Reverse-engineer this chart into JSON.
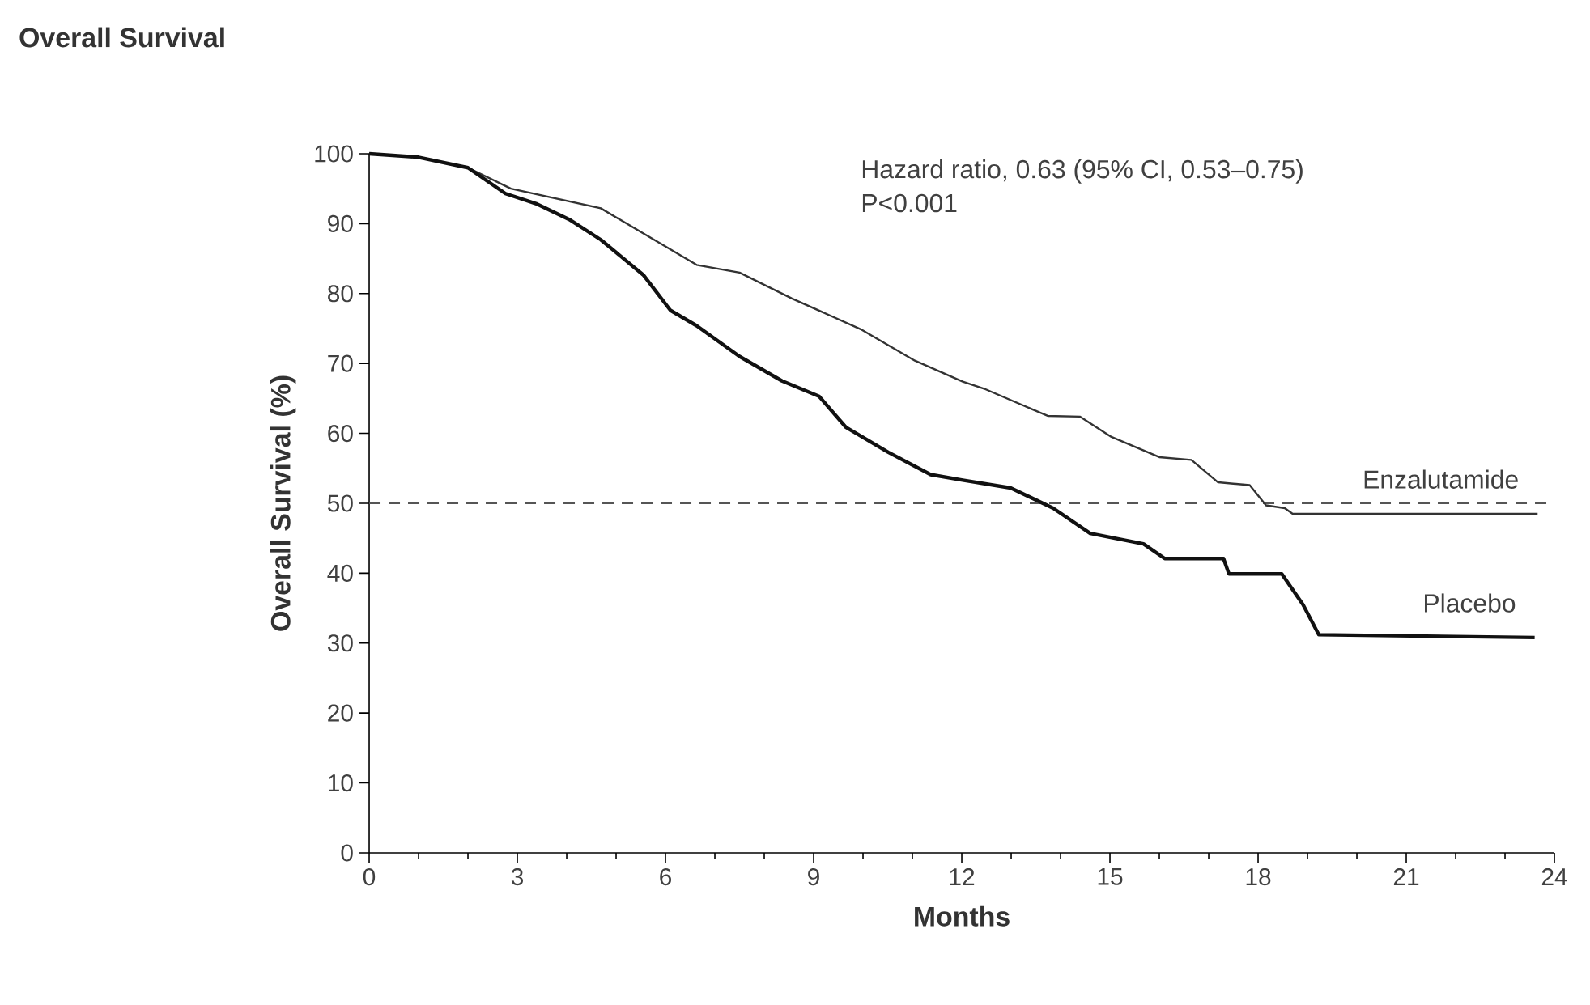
{
  "chart_data": {
    "type": "line",
    "title": "Overall Survival",
    "xlabel": "Months",
    "ylabel": "Overall Survival (%)",
    "annotations": [
      "Hazard ratio, 0.63 (95% CI, 0.53–0.75)",
      "P<0.001"
    ],
    "xlim": [
      0,
      24
    ],
    "ylim": [
      0,
      100
    ],
    "xticks": [
      0,
      3,
      6,
      9,
      12,
      15,
      18,
      21,
      24
    ],
    "yticks": [
      0,
      10,
      20,
      30,
      40,
      50,
      60,
      70,
      80,
      90,
      100
    ],
    "marker": "none",
    "line_style": "solid",
    "ref_lines": [
      {
        "axis": "y",
        "value": 50,
        "color": "#555555",
        "line_style": "dashed"
      }
    ],
    "series": [
      {
        "name": "Enzalutamide",
        "color": "#333333",
        "x": [
          0,
          1,
          2,
          2.87,
          4.69,
          6.63,
          7.5,
          8.56,
          9.98,
          11.05,
          12.02,
          12.45,
          13.74,
          14.39,
          15.03,
          16.0,
          16.65,
          17.19,
          17.83,
          18.16,
          18.54,
          18.7,
          23.66
        ],
        "values": [
          100,
          99.5,
          98,
          95,
          92.2,
          84.1,
          83,
          79.3,
          74.8,
          70.4,
          67.4,
          66.4,
          62.5,
          62.4,
          59.5,
          56.6,
          56.2,
          53,
          52.6,
          49.7,
          49.3,
          48.5,
          48.5
        ]
      },
      {
        "name": "Placebo",
        "color": "#111111",
        "x": [
          0,
          1,
          2,
          2.76,
          3.4,
          4.05,
          4.69,
          5.56,
          6.1,
          6.63,
          7.5,
          8.36,
          9.11,
          9.65,
          10.51,
          11.37,
          12.02,
          12.99,
          13.85,
          14.6,
          15.68,
          16.11,
          17.3,
          17.41,
          18.48,
          18.91,
          19.23,
          23.6
        ],
        "values": [
          100,
          99.5,
          98,
          94.3,
          92.8,
          90.6,
          87.7,
          82.6,
          77.6,
          75.4,
          71,
          67.5,
          65.3,
          60.9,
          57.3,
          54.1,
          53.3,
          52.2,
          49.3,
          45.7,
          44.2,
          42.1,
          42.1,
          39.9,
          39.9,
          35.5,
          31.2,
          30.8
        ]
      }
    ]
  }
}
